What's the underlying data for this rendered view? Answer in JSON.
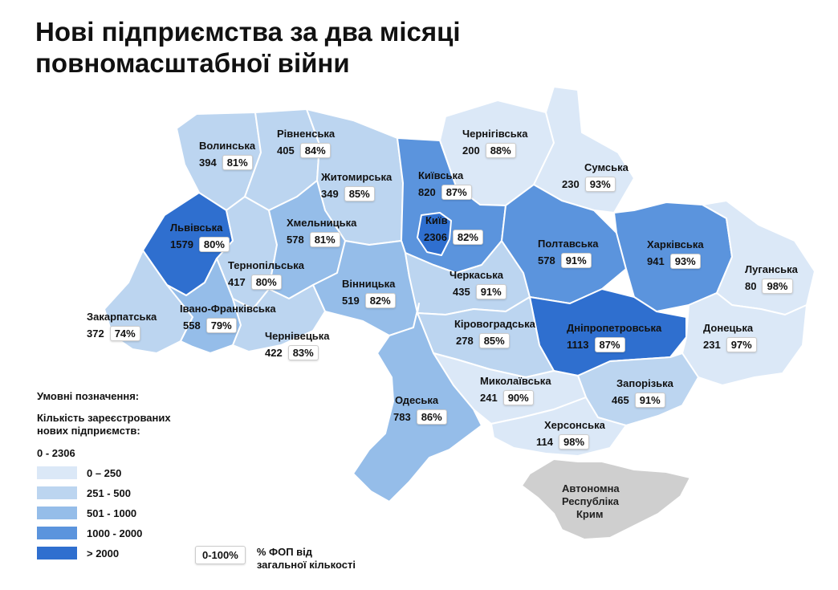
{
  "title": [
    "Нові підприємства за два місяці",
    "повномасштабної війни"
  ],
  "colors": {
    "c0": "#dbe8f7",
    "c1": "#bcd5f0",
    "c2": "#95bde9",
    "c3": "#5b94dd",
    "c4": "#2f6fcf",
    "crimea": "#cfcfcf"
  },
  "regions": [
    {
      "name": "Волинська",
      "count": "394",
      "pct": "81%"
    },
    {
      "name": "Рівненська",
      "count": "405",
      "pct": "84%"
    },
    {
      "name": "Чернігівська",
      "count": "200",
      "pct": "88%"
    },
    {
      "name": "Житомирська",
      "count": "349",
      "pct": "85%"
    },
    {
      "name": "Київська",
      "count": "820",
      "pct": "87%"
    },
    {
      "name": "Сумська",
      "count": "230",
      "pct": "93%"
    },
    {
      "name": "Київ",
      "count": "2306",
      "pct": "82%"
    },
    {
      "name": "Львівська",
      "count": "1579",
      "pct": "80%"
    },
    {
      "name": "Хмельницька",
      "count": "578",
      "pct": "81%"
    },
    {
      "name": "Полтавська",
      "count": "578",
      "pct": "91%"
    },
    {
      "name": "Харківська",
      "count": "941",
      "pct": "93%"
    },
    {
      "name": "Тернопільська",
      "count": "417",
      "pct": "80%"
    },
    {
      "name": "Черкаська",
      "count": "435",
      "pct": "91%"
    },
    {
      "name": "Луганська",
      "count": "80",
      "pct": "98%"
    },
    {
      "name": "Вінницька",
      "count": "519",
      "pct": "82%"
    },
    {
      "name": "Закарпатська",
      "count": "372",
      "pct": "74%"
    },
    {
      "name": "Івано-Франківська",
      "count": "558",
      "pct": "79%"
    },
    {
      "name": "Кіровоградська",
      "count": "278",
      "pct": "85%"
    },
    {
      "name": "Дніпропетровська",
      "count": "1113",
      "pct": "87%"
    },
    {
      "name": "Донецька",
      "count": "231",
      "pct": "97%"
    },
    {
      "name": "Чернівецька",
      "count": "422",
      "pct": "83%"
    },
    {
      "name": "Миколаївська",
      "count": "241",
      "pct": "90%"
    },
    {
      "name": "Запорізька",
      "count": "465",
      "pct": "91%"
    },
    {
      "name": "Одеська",
      "count": "783",
      "pct": "86%"
    },
    {
      "name": "Херсонська",
      "count": "114",
      "pct": "98%"
    }
  ],
  "crimea": [
    "Автономна",
    "Республіка",
    "Крим"
  ],
  "legend": {
    "title": "Умовні позначення:",
    "subtitle": "Кількість зареєстрованих нових підприємств:",
    "range": "0 - 2306",
    "bins": [
      "0 – 250",
      "251 - 500",
      "501 - 1000",
      "1000 - 2000",
      "> 2000"
    ]
  },
  "pct_legend": {
    "box": "0-100%",
    "text": [
      "% ФОП від",
      "загальної кількості"
    ]
  }
}
